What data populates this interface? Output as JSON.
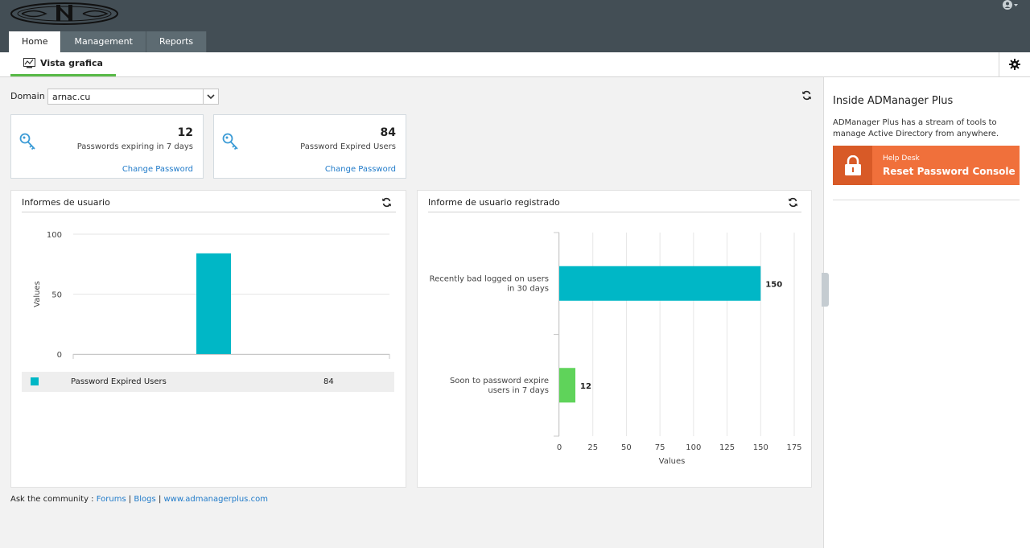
{
  "header": {
    "tabs": [
      {
        "label": "Home",
        "active": true
      },
      {
        "label": "Management",
        "active": false
      },
      {
        "label": "Reports",
        "active": false
      }
    ],
    "user_icon": "user-circle-icon"
  },
  "subnav": {
    "tab_label": "Vista grafica",
    "tab_icon": "chart-line-icon",
    "settings_icon": "gear-icon"
  },
  "domain": {
    "label": "Domain",
    "value": "arnac.cu"
  },
  "stats": [
    {
      "value": "12",
      "description": "Passwords expiring in 7 days",
      "link": "Change Password",
      "icon": "key-icon"
    },
    {
      "value": "84",
      "description": "Password Expired Users",
      "link": "Change Password",
      "icon": "key-icon"
    }
  ],
  "panels": {
    "left": {
      "title": "Informes de usuario"
    },
    "right": {
      "title": "Informe de usuario registrado"
    }
  },
  "chart_data": [
    {
      "type": "bar",
      "title": "Informes de usuario",
      "ylabel": "Values",
      "ylim": [
        0,
        100
      ],
      "yticks": [
        "0",
        "50",
        "100"
      ],
      "categories": [
        "Password Expired Users"
      ],
      "values": [
        84
      ],
      "color": "#00b7c6",
      "grid": true,
      "legend": [
        {
          "name": "Password Expired Users",
          "value": "84"
        }
      ]
    },
    {
      "type": "bar",
      "orientation": "horizontal",
      "title": "Informe de usuario registrado",
      "xlabel": "Values",
      "xlim": [
        0,
        175
      ],
      "xticks": [
        "0",
        "25",
        "50",
        "75",
        "100",
        "125",
        "150",
        "175"
      ],
      "categories": [
        "Recently bad logged on users in 30 days",
        "Soon to password expire users in 7 days"
      ],
      "category_lines": [
        [
          "Recently bad logged on users",
          "in 30 days"
        ],
        [
          "Soon to password expire",
          "users in 7 days"
        ]
      ],
      "values": [
        150,
        12
      ],
      "value_labels": [
        "150",
        "12"
      ],
      "colors": [
        "#00b7c6",
        "#5fd35a"
      ],
      "grid": true
    }
  ],
  "footer": {
    "prefix": "Ask the community :",
    "links": [
      "Forums",
      "Blogs",
      "www.admanagerplus.com"
    ],
    "separator": "|"
  },
  "sidebar": {
    "title": "Inside ADManager Plus",
    "text": "ADManager Plus has a stream of tools to manage Active Directory from anywhere.",
    "banner_small": "Help Desk",
    "banner_big": "Reset Password Console"
  }
}
